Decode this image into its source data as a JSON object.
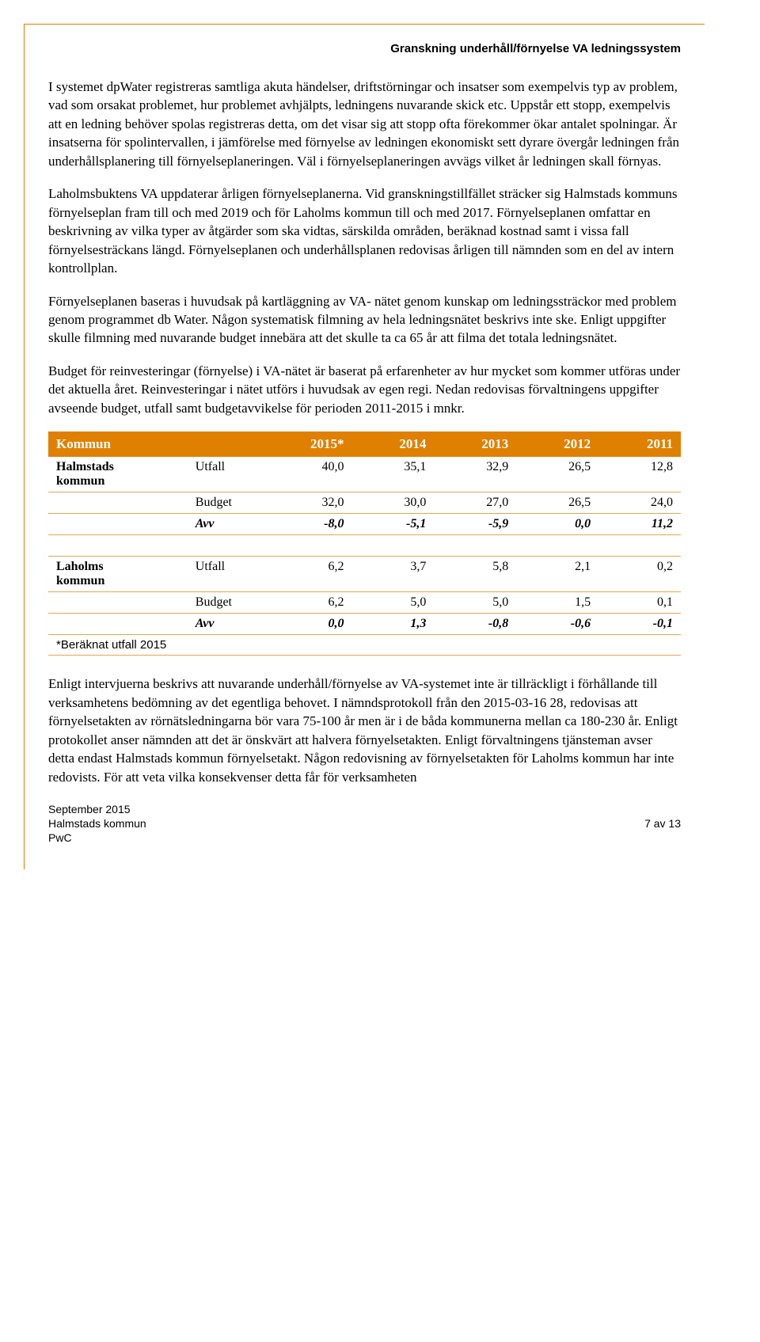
{
  "header": {
    "title": "Granskning underhåll/förnyelse VA ledningssystem"
  },
  "paragraphs": {
    "p1": "I systemet dpWater registreras samtliga akuta händelser, driftstörningar och insatser som exempelvis typ av problem, vad som orsakat problemet, hur problemet avhjälpts, ledningens nuvarande skick etc. Uppstår ett stopp, exempelvis att en ledning behöver spolas registreras detta, om det visar sig att stopp ofta förekommer ökar antalet spolningar. Är insatserna för spolintervallen, i jämförelse med förnyelse av ledningen ekonomiskt sett dyrare övergår ledningen från underhållsplanering till förnyelseplaneringen. Väl i förnyelseplaneringen avvägs vilket år ledningen skall förnyas.",
    "p2": "Laholmsbuktens VA uppdaterar årligen förnyelseplanerna. Vid granskningstillfället sträcker sig Halmstads kommuns förnyelseplan fram till och med 2019 och för Laholms kommun till och med 2017. Förnyelseplanen omfattar en beskrivning av vilka typer av åtgärder som ska vidtas, särskilda områden, beräknad kostnad samt i vissa fall förnyelsesträckans längd. Förnyelseplanen och underhållsplanen redovisas årligen till nämnden som en del av intern kontrollplan.",
    "p3": "Förnyelseplanen baseras i huvudsak på kartläggning av VA- nätet genom kunskap om ledningssträckor med problem genom programmet db Water. Någon systematisk filmning av hela ledningsnätet beskrivs inte ske. Enligt uppgifter skulle filmning med nuvarande budget innebära att det skulle ta ca 65 år att filma det totala ledningsnätet.",
    "p4": "Budget för reinvesteringar (förnyelse) i VA-nätet är baserat på erfarenheter av hur mycket som kommer utföras under det aktuella året. Reinvesteringar i nätet utförs i huvudsak av egen regi. Nedan redovisas förvaltningens uppgifter avseende budget, utfall samt budgetavvikelse för perioden 2011-2015 i mnkr.",
    "p5": "Enligt intervjuerna beskrivs att nuvarande underhåll/förnyelse av VA-systemet inte är tillräckligt i förhållande till verksamhetens bedömning av det egentliga behovet. I nämndsprotokoll från den 2015-03-16 28, redovisas att förnyelsetakten av rörnätsledningarna bör vara 75-100 år men är i de båda kommunerna mellan ca 180-230 år. Enligt protokollet anser nämnden att det är önskvärt att halvera förnyelsetakten. Enligt förvaltningens tjänsteman avser detta endast Halmstads kommun förnyelsetakt. Någon redovisning av förnyelsetakten för Laholms kommun har inte redovists. För att veta vilka konsekvenser detta får för verksamheten"
  },
  "table": {
    "type": "table",
    "background_color": "#ffffff",
    "header_bg": "#e08000",
    "header_color": "#ffffff",
    "border_color": "#e6a650",
    "columns": [
      "Kommun",
      "",
      "2015*",
      "2014",
      "2013",
      "2012",
      "2011"
    ],
    "sections": [
      {
        "name": "Halmstads kommun",
        "rows": [
          {
            "label": "Utfall",
            "values": [
              "40,0",
              "35,1",
              "32,9",
              "26,5",
              "12,8"
            ]
          },
          {
            "label": "Budget",
            "values": [
              "32,0",
              "30,0",
              "27,0",
              "26,5",
              "24,0"
            ]
          },
          {
            "label": "Avv",
            "avv": true,
            "values": [
              "-8,0",
              "-5,1",
              "-5,9",
              "0,0",
              "11,2"
            ]
          }
        ]
      },
      {
        "name": "Laholms kommun",
        "rows": [
          {
            "label": "Utfall",
            "values": [
              "6,2",
              "3,7",
              "5,8",
              "2,1",
              "0,2"
            ]
          },
          {
            "label": "Budget",
            "values": [
              "6,2",
              "5,0",
              "5,0",
              "1,5",
              "0,1"
            ]
          },
          {
            "label": "Avv",
            "avv": true,
            "values": [
              "0,0",
              "1,3",
              "-0,8",
              "-0,6",
              "-0,1"
            ]
          }
        ]
      }
    ],
    "footnote": "*Beräknat utfall 2015"
  },
  "footer": {
    "line1": "September 2015",
    "line2": "Halmstads kommun",
    "line3": "PwC",
    "page": "7 av 13"
  }
}
